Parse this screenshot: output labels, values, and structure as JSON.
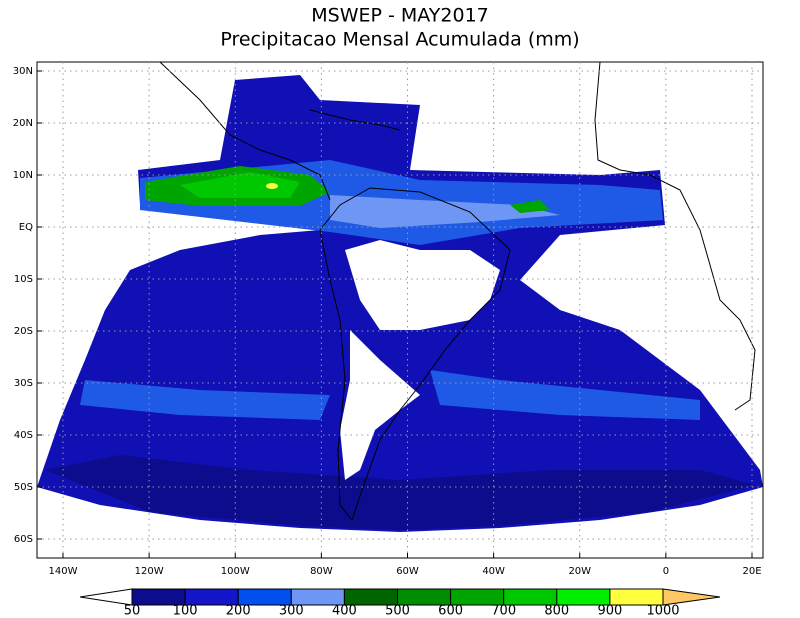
{
  "title": "MSWEP - MAY2017",
  "subtitle": "Precipitacao Mensal Acumulada (mm)",
  "map": {
    "lat_ticks": [
      {
        "value": 30,
        "label": "30N"
      },
      {
        "value": 20,
        "label": "20N"
      },
      {
        "value": 10,
        "label": "10N"
      },
      {
        "value": 0,
        "label": "EQ"
      },
      {
        "value": -10,
        "label": "10S"
      },
      {
        "value": -20,
        "label": "20S"
      },
      {
        "value": -30,
        "label": "30S"
      },
      {
        "value": -40,
        "label": "40S"
      },
      {
        "value": -50,
        "label": "50S"
      },
      {
        "value": -60,
        "label": "60S"
      }
    ],
    "lon_ticks": [
      {
        "value": -140,
        "label": "140W"
      },
      {
        "value": -120,
        "label": "120W"
      },
      {
        "value": -100,
        "label": "100W"
      },
      {
        "value": -80,
        "label": "80W"
      },
      {
        "value": -60,
        "label": "60W"
      },
      {
        "value": -40,
        "label": "40W"
      },
      {
        "value": -20,
        "label": "20W"
      },
      {
        "value": 0,
        "label": "0"
      },
      {
        "value": 20,
        "label": "20E"
      }
    ],
    "grid": true
  },
  "colorbar": {
    "levels": [
      50,
      100,
      200,
      300,
      400,
      500,
      600,
      700,
      800,
      900,
      1000
    ],
    "colors": [
      "#ffffff",
      "#0c0c8c",
      "#1414c8",
      "#0050f0",
      "#6e96f5",
      "#006400",
      "#008c00",
      "#00a500",
      "#00c800",
      "#00f000",
      "#ffff40",
      "#ffc864"
    ]
  }
}
